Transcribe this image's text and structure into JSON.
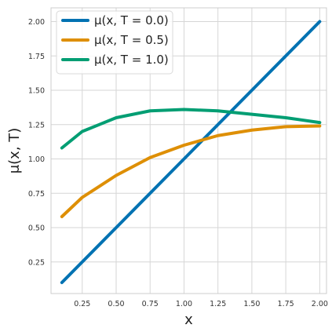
{
  "chart_data": {
    "type": "line",
    "xlabel": "x",
    "ylabel": "μ(x, T)",
    "xlim": [
      0.02,
      2.05
    ],
    "ylim": [
      0.02,
      2.1
    ],
    "xticks": [
      0.25,
      0.5,
      0.75,
      1.0,
      1.25,
      1.5,
      1.75,
      2.0
    ],
    "xtick_labels": [
      "0.25",
      "0.50",
      "0.75",
      "1.00",
      "1.25",
      "1.50",
      "1.75",
      "2.00"
    ],
    "yticks": [
      0.25,
      0.5,
      0.75,
      1.0,
      1.25,
      1.5,
      1.75,
      2.0
    ],
    "ytick_labels": [
      "0.25",
      "0.50",
      "0.75",
      "1.00",
      "1.25",
      "1.50",
      "1.75",
      "2.00"
    ],
    "grid": true,
    "legend_position": "top-left",
    "series": [
      {
        "name": "μ(x, T = 0.0)",
        "color": "#0072b2",
        "x": [
          0.1,
          0.25,
          0.5,
          0.75,
          1.0,
          1.25,
          1.5,
          1.75,
          2.0
        ],
        "y": [
          0.1,
          0.25,
          0.5,
          0.75,
          1.0,
          1.25,
          1.5,
          1.75,
          2.0
        ]
      },
      {
        "name": "μ(x, T = 0.5)",
        "color": "#de8f05",
        "x": [
          0.1,
          0.25,
          0.5,
          0.75,
          1.0,
          1.25,
          1.5,
          1.75,
          2.0
        ],
        "y": [
          0.58,
          0.72,
          0.88,
          1.01,
          1.1,
          1.17,
          1.21,
          1.235,
          1.24
        ]
      },
      {
        "name": "μ(x, T = 1.0)",
        "color": "#029e73",
        "x": [
          0.1,
          0.25,
          0.5,
          0.75,
          1.0,
          1.25,
          1.5,
          1.75,
          2.0
        ],
        "y": [
          1.08,
          1.2,
          1.3,
          1.35,
          1.36,
          1.35,
          1.325,
          1.3,
          1.265
        ]
      }
    ]
  }
}
